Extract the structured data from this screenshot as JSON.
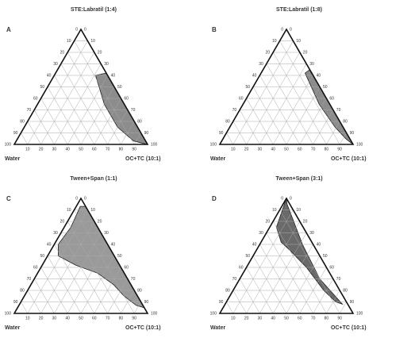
{
  "chart_data": [
    {
      "type": "ternary",
      "panel": "A",
      "title": "STE:Labratil (1:4)",
      "left_label": "Water",
      "right_label": "OC+TC (10:1)",
      "ticks": [
        0,
        10,
        20,
        30,
        40,
        50,
        60,
        70,
        80,
        90,
        100
      ],
      "color": "#8c8c8c",
      "region": {
        "a": [
          62,
          60,
          35,
          15,
          3,
          0
        ],
        "b": [
          38,
          31,
          50,
          70,
          88,
          100
        ]
      }
    },
    {
      "type": "ternary",
      "panel": "B",
      "title": "STE:Labratil (1:8)",
      "left_label": "Water",
      "right_label": "OC+TC (10:1)",
      "ticks": [
        0,
        10,
        20,
        30,
        40,
        50,
        60,
        70,
        80,
        90,
        100
      ],
      "color": "#8c8c8c",
      "region": {
        "a": [
          65,
          62,
          35,
          15,
          5,
          0
        ],
        "b": [
          35,
          33,
          57,
          79,
          92,
          100
        ]
      }
    },
    {
      "type": "ternary",
      "panel": "C",
      "title": "Tween+Span (1:1)",
      "left_label": "Water",
      "right_label": "OC+TC (10:1)",
      "ticks": [
        0,
        10,
        20,
        30,
        40,
        50,
        60,
        70,
        80,
        90,
        100
      ],
      "color": "#9a9a9a",
      "region": {
        "a": [
          93,
          75,
          60,
          50,
          42,
          35,
          25,
          15,
          7,
          5,
          60,
          93
        ],
        "b": [
          3,
          5,
          3,
          8,
          25,
          45,
          62,
          75,
          88,
          95,
          40,
          7
        ]
      }
    },
    {
      "type": "ternary",
      "panel": "D",
      "title": "Tween+Span (3:1)",
      "left_label": "Water",
      "right_label": "OC+TC (10:1)",
      "ticks": [
        0,
        10,
        20,
        30,
        40,
        50,
        60,
        70,
        80,
        90,
        100
      ],
      "color": "#6a6a6a",
      "region": {
        "a": [
          100,
          75,
          62,
          55,
          40,
          20,
          10,
          8,
          30,
          60,
          95
        ],
        "b": [
          0,
          5,
          15,
          25,
          45,
          68,
          82,
          88,
          60,
          32,
          3
        ]
      }
    }
  ]
}
